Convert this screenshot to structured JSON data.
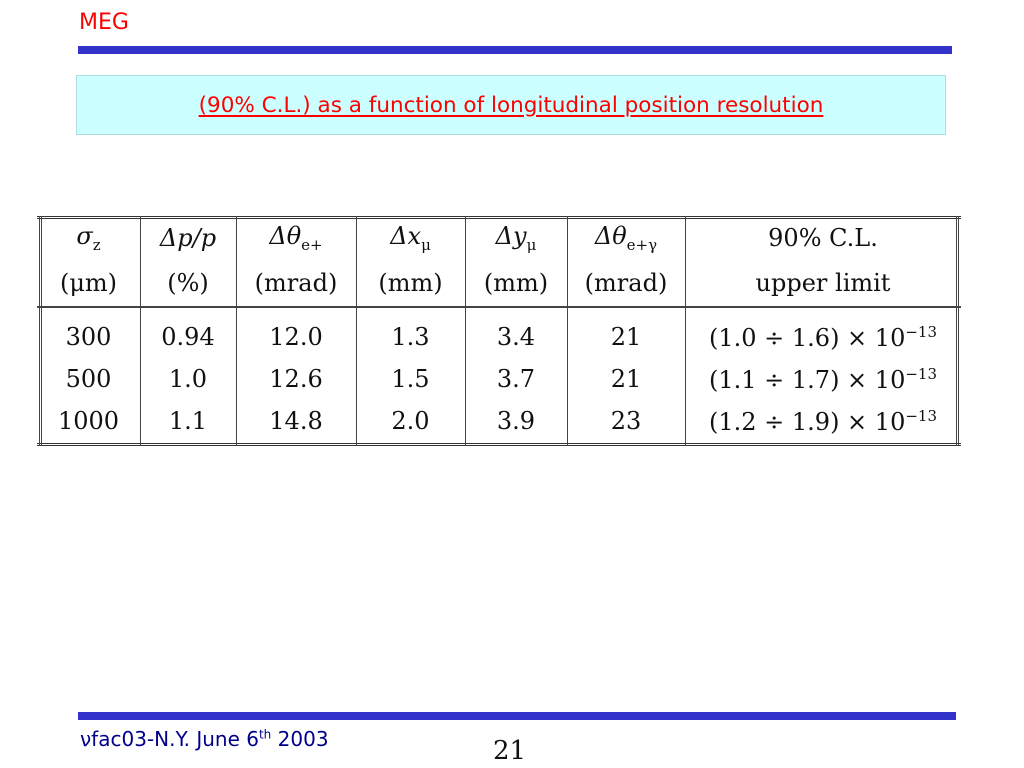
{
  "header": {
    "label": "MEG",
    "title": "(90% C.L.) as a function of longitudinal position resolution"
  },
  "table": {
    "columns": [
      {
        "sym": "σ",
        "sub": "z",
        "rest": "",
        "unit": "(μm)"
      },
      {
        "sym": "Δp/p",
        "sub": "",
        "rest": "",
        "unit": "(%)"
      },
      {
        "sym": "Δθ",
        "sub": "e+",
        "rest": "",
        "unit": "(mrad)"
      },
      {
        "sym": "Δx",
        "sub": "μ",
        "rest": "",
        "unit": "(mm)"
      },
      {
        "sym": "Δy",
        "sub": "μ",
        "rest": "",
        "unit": "(mm)"
      },
      {
        "sym": "Δθ",
        "sub": "e+γ",
        "rest": "",
        "unit": "(mrad)"
      },
      {
        "sym": "90% C.L.",
        "sub": "",
        "rest": "",
        "unit": "upper limit"
      }
    ],
    "rows": [
      {
        "cells": [
          "300",
          "0.94",
          "12.0",
          "1.3",
          "3.4",
          "21"
        ],
        "limit": "(1.0 ÷ 1.6) × 10",
        "exp": "−13"
      },
      {
        "cells": [
          "500",
          "1.0",
          "12.6",
          "1.5",
          "3.7",
          "21"
        ],
        "limit": "(1.1 ÷ 1.7) × 10",
        "exp": "−13"
      },
      {
        "cells": [
          "1000",
          "1.1",
          "14.8",
          "2.0",
          "3.9",
          "23"
        ],
        "limit": "(1.2 ÷ 1.9) × 10",
        "exp": "−13"
      }
    ]
  },
  "footer": {
    "nu": "ν",
    "text": "fac03-N.Y. June 6",
    "sup": "th",
    "year": " 2003",
    "page": "21"
  }
}
